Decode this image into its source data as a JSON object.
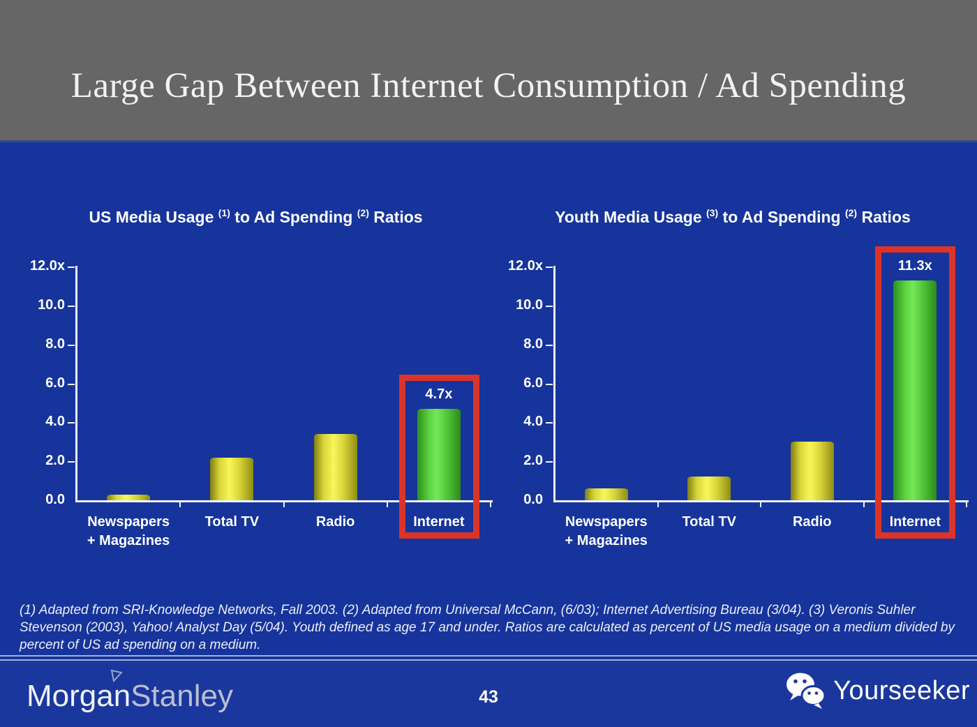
{
  "slide": {
    "title": "Large Gap Between Internet Consumption / Ad Spending",
    "footnote": "(1) Adapted from SRI-Knowledge Networks, Fall 2003.  (2) Adapted from Universal McCann, (6/03); Internet Advertising Bureau (3/04). (3) Veronis Suhler Stevenson (2003), Yahoo! Analyst Day (5/04).  Youth defined as age 17 and under.  Ratios are calculated as percent of US media usage on a medium divided by percent of US ad spending on a medium.",
    "page_number": "43"
  },
  "footer": {
    "logo_text_1": "Morgan",
    "logo_text_2": "Stanley",
    "partner_logo_text": "Yourseeker",
    "partner_icon": "wechat-icon"
  },
  "colors": {
    "header_gray": "#666666",
    "background_blue": "#16349B",
    "footer_blue": "#1A379D",
    "bar_yellow": "#F0ED45",
    "bar_green": "#5FD944",
    "highlight_red": "#DC3429",
    "axis_white": "#F2F5FB"
  },
  "chart_data": [
    {
      "type": "bar",
      "title": "US Media Usage (1) to Ad Spending (2) Ratios",
      "title_parts": [
        {
          "t": "US Media Usage "
        },
        {
          "sup": "(1)"
        },
        {
          "t": " to Ad Spending "
        },
        {
          "sup": "(2)"
        },
        {
          "t": " Ratios"
        }
      ],
      "categories": [
        "Newspapers\n+ Magazines",
        "Total TV",
        "Radio",
        "Internet"
      ],
      "values": [
        0.3,
        2.2,
        3.4,
        4.7
      ],
      "bar_styles": [
        "yellow",
        "yellow",
        "yellow",
        "green"
      ],
      "value_labels": [
        null,
        null,
        null,
        "4.7x"
      ],
      "highlight_index": 3,
      "xlabel": "",
      "ylabel": "",
      "ylim": [
        0,
        12
      ],
      "ytick_values": [
        0,
        2,
        4,
        6,
        8,
        10,
        12
      ],
      "ytick_labels": [
        "0.0",
        "2.0",
        "4.0",
        "6.0",
        "8.0",
        "10.0",
        "12.0x"
      ],
      "grid": false,
      "legend": "none"
    },
    {
      "type": "bar",
      "title": "Youth Media Usage (3) to Ad Spending (2) Ratios",
      "title_parts": [
        {
          "t": "Youth Media Usage "
        },
        {
          "sup": "(3)"
        },
        {
          "t": " to Ad Spending "
        },
        {
          "sup": "(2)"
        },
        {
          "t": " Ratios"
        }
      ],
      "categories": [
        "Newspapers\n+ Magazines",
        "Total TV",
        "Radio",
        "Internet"
      ],
      "values": [
        0.6,
        1.2,
        3.0,
        11.3
      ],
      "bar_styles": [
        "yellow",
        "yellow",
        "yellow",
        "green"
      ],
      "value_labels": [
        null,
        null,
        null,
        "11.3x"
      ],
      "highlight_index": 3,
      "xlabel": "",
      "ylabel": "",
      "ylim": [
        0,
        12
      ],
      "ytick_values": [
        0,
        2,
        4,
        6,
        8,
        10,
        12
      ],
      "ytick_labels": [
        "0.0",
        "2.0",
        "4.0",
        "6.0",
        "8.0",
        "10.0",
        "12.0x"
      ],
      "grid": false,
      "legend": "none"
    }
  ]
}
